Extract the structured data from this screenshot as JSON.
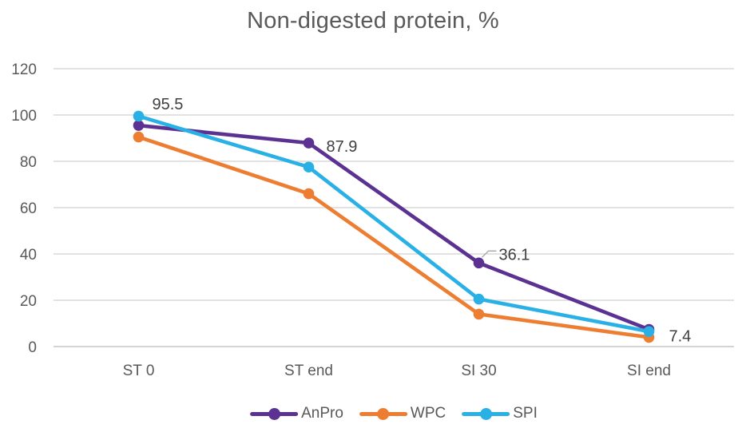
{
  "title": "Non-digested protein, %",
  "colors": {
    "title_text": "#595959",
    "axis_text": "#595959",
    "data_label_text": "#404040",
    "gridline": "#D9D9D9",
    "axis_line": "#C6C6C6",
    "leader_line": "#A6A6A6",
    "background": "#FFFFFF"
  },
  "chart_data": {
    "type": "line",
    "title": "Non-digested protein, %",
    "categories": [
      "ST 0",
      "ST end",
      "SI 30",
      "SI end"
    ],
    "series": [
      {
        "name": "AnPro",
        "color": "#5B3292",
        "values": [
          95.5,
          87.9,
          36.1,
          7.4
        ]
      },
      {
        "name": "WPC",
        "color": "#ED7D31",
        "values": [
          90.5,
          66.0,
          14.0,
          4.0
        ]
      },
      {
        "name": "SPI",
        "color": "#29B1E6",
        "values": [
          99.5,
          77.5,
          20.5,
          6.5
        ]
      }
    ],
    "data_labels": {
      "series": "AnPro",
      "labels": [
        "95.5",
        "87.9",
        "36.1",
        "7.4"
      ]
    },
    "xlabel": "",
    "ylabel": "",
    "ylim": [
      0,
      120
    ],
    "ytick_step": 20,
    "yticks": [
      "0",
      "20",
      "40",
      "60",
      "80",
      "100",
      "120"
    ],
    "grid": true,
    "legend_position": "bottom",
    "marker": "circle"
  }
}
